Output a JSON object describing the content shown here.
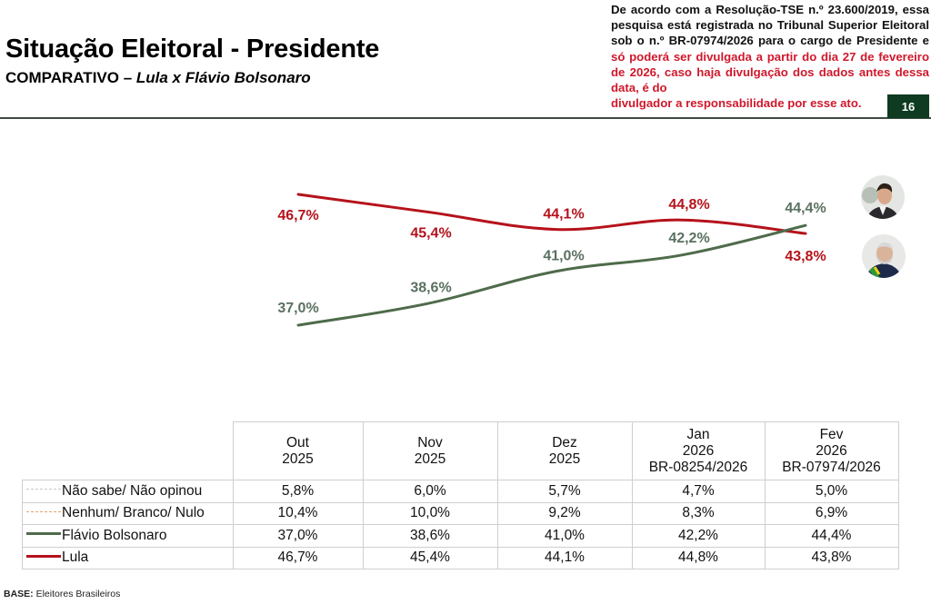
{
  "header": {
    "title": "Situação Eleitoral - Presidente",
    "subtitle_prefix": "COMPARATIVO – ",
    "subtitle_italic": "Lula x Flávio Bolsonaro",
    "notice_black": "De acordo com a Resolução-TSE n.º 23.600/2019, essa pesquisa está registrada no Tribunal Superior Eleitoral sob o n.º BR-07974/2026 para o cargo de Presidente e ",
    "notice_red": "só poderá ser divulgada a partir do dia 27 de fevereiro de 2026, caso haja divulgação dos dados antes dessa data, é do",
    "notice_red_last": "divulgador a responsabilidade por esse ato.",
    "page_number": "16"
  },
  "colors": {
    "lula": "#b5121b",
    "flavio": "#4e6b4a",
    "lula_label": "#b5121b",
    "flavio_label": "#5a7060",
    "nao_sabe": "#bfbfbf",
    "nenhum": "#e0a060",
    "badge": "#0e3b21"
  },
  "chart_data": {
    "type": "line",
    "title": "Situação Eleitoral - Presidente",
    "subtitle": "COMPARATIVO – Lula x Flávio Bolsonaro",
    "categories": [
      "Out 2025",
      "Nov 2025",
      "Dez 2025",
      "Jan 2026",
      "Fev 2026"
    ],
    "series": [
      {
        "name": "Lula",
        "values": [
          46.7,
          45.4,
          44.1,
          44.8,
          43.8
        ],
        "labels": [
          "46,7%",
          "45,4%",
          "44,1%",
          "44,8%",
          "43,8%"
        ]
      },
      {
        "name": "Flávio Bolsonaro",
        "values": [
          37.0,
          38.6,
          41.0,
          42.2,
          44.4
        ],
        "labels": [
          "37,0%",
          "38,6%",
          "41,0%",
          "42,2%",
          "44,4%"
        ]
      }
    ],
    "xlabel": "",
    "ylabel": "",
    "grid": false,
    "legend": "table-below"
  },
  "table": {
    "headers": [
      {
        "lines": [
          "Out",
          "2025"
        ]
      },
      {
        "lines": [
          "Nov",
          "2025"
        ]
      },
      {
        "lines": [
          "Dez",
          "2025"
        ]
      },
      {
        "lines": [
          "Jan",
          "2026",
          "BR-08254/2026"
        ]
      },
      {
        "lines": [
          "Fev",
          "2026",
          "BR-07974/2026"
        ]
      }
    ],
    "rows": [
      {
        "label": "Não sabe/ Não opinou",
        "style": "nao_sabe",
        "values": [
          "5,8%",
          "6,0%",
          "5,7%",
          "4,7%",
          "5,0%"
        ]
      },
      {
        "label": "Nenhum/ Branco/ Nulo",
        "style": "nenhum",
        "values": [
          "10,4%",
          "10,0%",
          "9,2%",
          "8,3%",
          "6,9%"
        ]
      },
      {
        "label": "Flávio Bolsonaro",
        "style": "flavio",
        "values": [
          "37,0%",
          "38,6%",
          "41,0%",
          "42,2%",
          "44,4%"
        ]
      },
      {
        "label": "Lula",
        "style": "lula",
        "values": [
          "46,7%",
          "45,4%",
          "44,1%",
          "44,8%",
          "43,8%"
        ]
      }
    ]
  },
  "footer": {
    "base_label": "BASE:",
    "base_value": " Eleitores Brasileiros"
  },
  "avatars": {
    "top": "Flávio Bolsonaro",
    "bottom": "Lula"
  }
}
